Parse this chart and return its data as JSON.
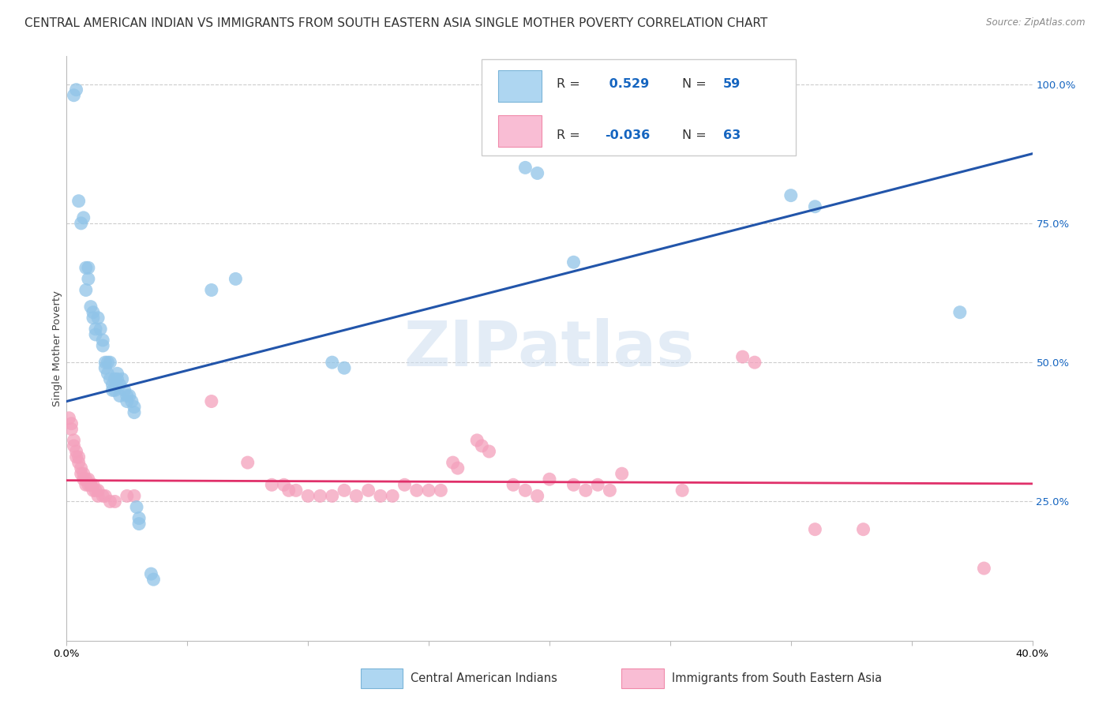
{
  "title": "CENTRAL AMERICAN INDIAN VS IMMIGRANTS FROM SOUTH EASTERN ASIA SINGLE MOTHER POVERTY CORRELATION CHART",
  "source": "Source: ZipAtlas.com",
  "ylabel": "Single Mother Poverty",
  "ylabel_right_labels": [
    "100.0%",
    "75.0%",
    "50.0%",
    "25.0%"
  ],
  "ylabel_right_values": [
    1.0,
    0.75,
    0.5,
    0.25
  ],
  "legend_label_blue": "Central American Indians",
  "legend_label_pink": "Immigrants from South Eastern Asia",
  "watermark": "ZIPatlas",
  "blue_color": "#90c4e8",
  "pink_color": "#f4a0bc",
  "blue_line_color": "#2255aa",
  "pink_line_color": "#e0306a",
  "blue_line_y0": 0.43,
  "blue_line_y1": 0.875,
  "pink_line_y0": 0.288,
  "pink_line_y1": 0.282,
  "blue_scatter": [
    [
      0.003,
      0.98
    ],
    [
      0.004,
      0.99
    ],
    [
      0.005,
      0.79
    ],
    [
      0.006,
      0.75
    ],
    [
      0.007,
      0.76
    ],
    [
      0.008,
      0.67
    ],
    [
      0.008,
      0.63
    ],
    [
      0.009,
      0.67
    ],
    [
      0.009,
      0.65
    ],
    [
      0.01,
      0.6
    ],
    [
      0.011,
      0.59
    ],
    [
      0.011,
      0.58
    ],
    [
      0.012,
      0.56
    ],
    [
      0.012,
      0.55
    ],
    [
      0.013,
      0.58
    ],
    [
      0.014,
      0.56
    ],
    [
      0.015,
      0.54
    ],
    [
      0.015,
      0.53
    ],
    [
      0.016,
      0.5
    ],
    [
      0.016,
      0.49
    ],
    [
      0.017,
      0.5
    ],
    [
      0.017,
      0.48
    ],
    [
      0.018,
      0.5
    ],
    [
      0.018,
      0.47
    ],
    [
      0.019,
      0.46
    ],
    [
      0.019,
      0.45
    ],
    [
      0.02,
      0.47
    ],
    [
      0.02,
      0.45
    ],
    [
      0.021,
      0.48
    ],
    [
      0.021,
      0.47
    ],
    [
      0.022,
      0.46
    ],
    [
      0.022,
      0.44
    ],
    [
      0.023,
      0.47
    ],
    [
      0.024,
      0.45
    ],
    [
      0.025,
      0.44
    ],
    [
      0.025,
      0.43
    ],
    [
      0.026,
      0.44
    ],
    [
      0.027,
      0.43
    ],
    [
      0.028,
      0.42
    ],
    [
      0.028,
      0.41
    ],
    [
      0.029,
      0.24
    ],
    [
      0.03,
      0.22
    ],
    [
      0.03,
      0.21
    ],
    [
      0.035,
      0.12
    ],
    [
      0.036,
      0.11
    ],
    [
      0.06,
      0.63
    ],
    [
      0.07,
      0.65
    ],
    [
      0.11,
      0.5
    ],
    [
      0.115,
      0.49
    ],
    [
      0.19,
      0.85
    ],
    [
      0.195,
      0.84
    ],
    [
      0.21,
      0.68
    ],
    [
      0.3,
      0.8
    ],
    [
      0.31,
      0.78
    ],
    [
      0.37,
      0.59
    ]
  ],
  "pink_scatter": [
    [
      0.001,
      0.4
    ],
    [
      0.002,
      0.39
    ],
    [
      0.002,
      0.38
    ],
    [
      0.003,
      0.36
    ],
    [
      0.003,
      0.35
    ],
    [
      0.004,
      0.34
    ],
    [
      0.004,
      0.33
    ],
    [
      0.005,
      0.33
    ],
    [
      0.005,
      0.32
    ],
    [
      0.006,
      0.31
    ],
    [
      0.006,
      0.3
    ],
    [
      0.007,
      0.3
    ],
    [
      0.007,
      0.29
    ],
    [
      0.008,
      0.29
    ],
    [
      0.008,
      0.28
    ],
    [
      0.009,
      0.29
    ],
    [
      0.009,
      0.28
    ],
    [
      0.01,
      0.28
    ],
    [
      0.01,
      0.28
    ],
    [
      0.011,
      0.28
    ],
    [
      0.011,
      0.27
    ],
    [
      0.012,
      0.27
    ],
    [
      0.013,
      0.27
    ],
    [
      0.013,
      0.26
    ],
    [
      0.015,
      0.26
    ],
    [
      0.016,
      0.26
    ],
    [
      0.018,
      0.25
    ],
    [
      0.02,
      0.25
    ],
    [
      0.025,
      0.26
    ],
    [
      0.028,
      0.26
    ],
    [
      0.06,
      0.43
    ],
    [
      0.075,
      0.32
    ],
    [
      0.085,
      0.28
    ],
    [
      0.09,
      0.28
    ],
    [
      0.092,
      0.27
    ],
    [
      0.095,
      0.27
    ],
    [
      0.1,
      0.26
    ],
    [
      0.105,
      0.26
    ],
    [
      0.11,
      0.26
    ],
    [
      0.115,
      0.27
    ],
    [
      0.12,
      0.26
    ],
    [
      0.125,
      0.27
    ],
    [
      0.13,
      0.26
    ],
    [
      0.135,
      0.26
    ],
    [
      0.14,
      0.28
    ],
    [
      0.145,
      0.27
    ],
    [
      0.15,
      0.27
    ],
    [
      0.155,
      0.27
    ],
    [
      0.16,
      0.32
    ],
    [
      0.162,
      0.31
    ],
    [
      0.17,
      0.36
    ],
    [
      0.172,
      0.35
    ],
    [
      0.175,
      0.34
    ],
    [
      0.185,
      0.28
    ],
    [
      0.19,
      0.27
    ],
    [
      0.195,
      0.26
    ],
    [
      0.2,
      0.29
    ],
    [
      0.21,
      0.28
    ],
    [
      0.215,
      0.27
    ],
    [
      0.22,
      0.28
    ],
    [
      0.225,
      0.27
    ],
    [
      0.23,
      0.3
    ],
    [
      0.255,
      0.27
    ],
    [
      0.28,
      0.51
    ],
    [
      0.285,
      0.5
    ],
    [
      0.31,
      0.2
    ],
    [
      0.33,
      0.2
    ],
    [
      0.38,
      0.13
    ]
  ],
  "xlim": [
    0.0,
    0.4
  ],
  "ylim": [
    0.0,
    1.05
  ],
  "x_ticks": [
    0.0,
    0.05,
    0.1,
    0.15,
    0.2,
    0.25,
    0.3,
    0.35,
    0.4
  ],
  "grid_color": "#cccccc",
  "background_color": "#ffffff",
  "title_fontsize": 11,
  "axis_fontsize": 9.5
}
